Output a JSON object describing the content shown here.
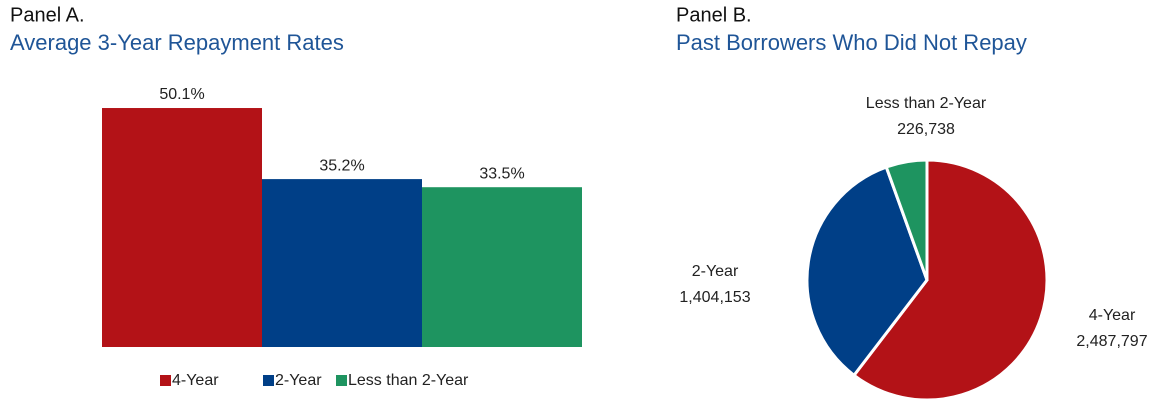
{
  "chart_data": [
    {
      "type": "bar",
      "title": "Panel A.",
      "subtitle": "Average 3-Year Repayment Rates",
      "categories": [
        "4-Year",
        "2-Year",
        "Less than 2-Year"
      ],
      "values": [
        50.1,
        35.2,
        33.5
      ],
      "value_labels": [
        "50.1%",
        "35.2%",
        "33.5%"
      ],
      "colors": [
        "#b31217",
        "#003f87",
        "#1e9460"
      ],
      "legend": "bottom"
    },
    {
      "type": "pie",
      "title": "Panel B.",
      "subtitle": "Past Borrowers Who Did Not Repay",
      "categories": [
        "4-Year",
        "2-Year",
        "Less than 2-Year"
      ],
      "values": [
        2487797,
        1404153,
        226738
      ],
      "value_labels": [
        "2,487,797",
        "1,404,153",
        "226,738"
      ],
      "colors": [
        "#b31217",
        "#003f87",
        "#1e9460"
      ]
    }
  ]
}
